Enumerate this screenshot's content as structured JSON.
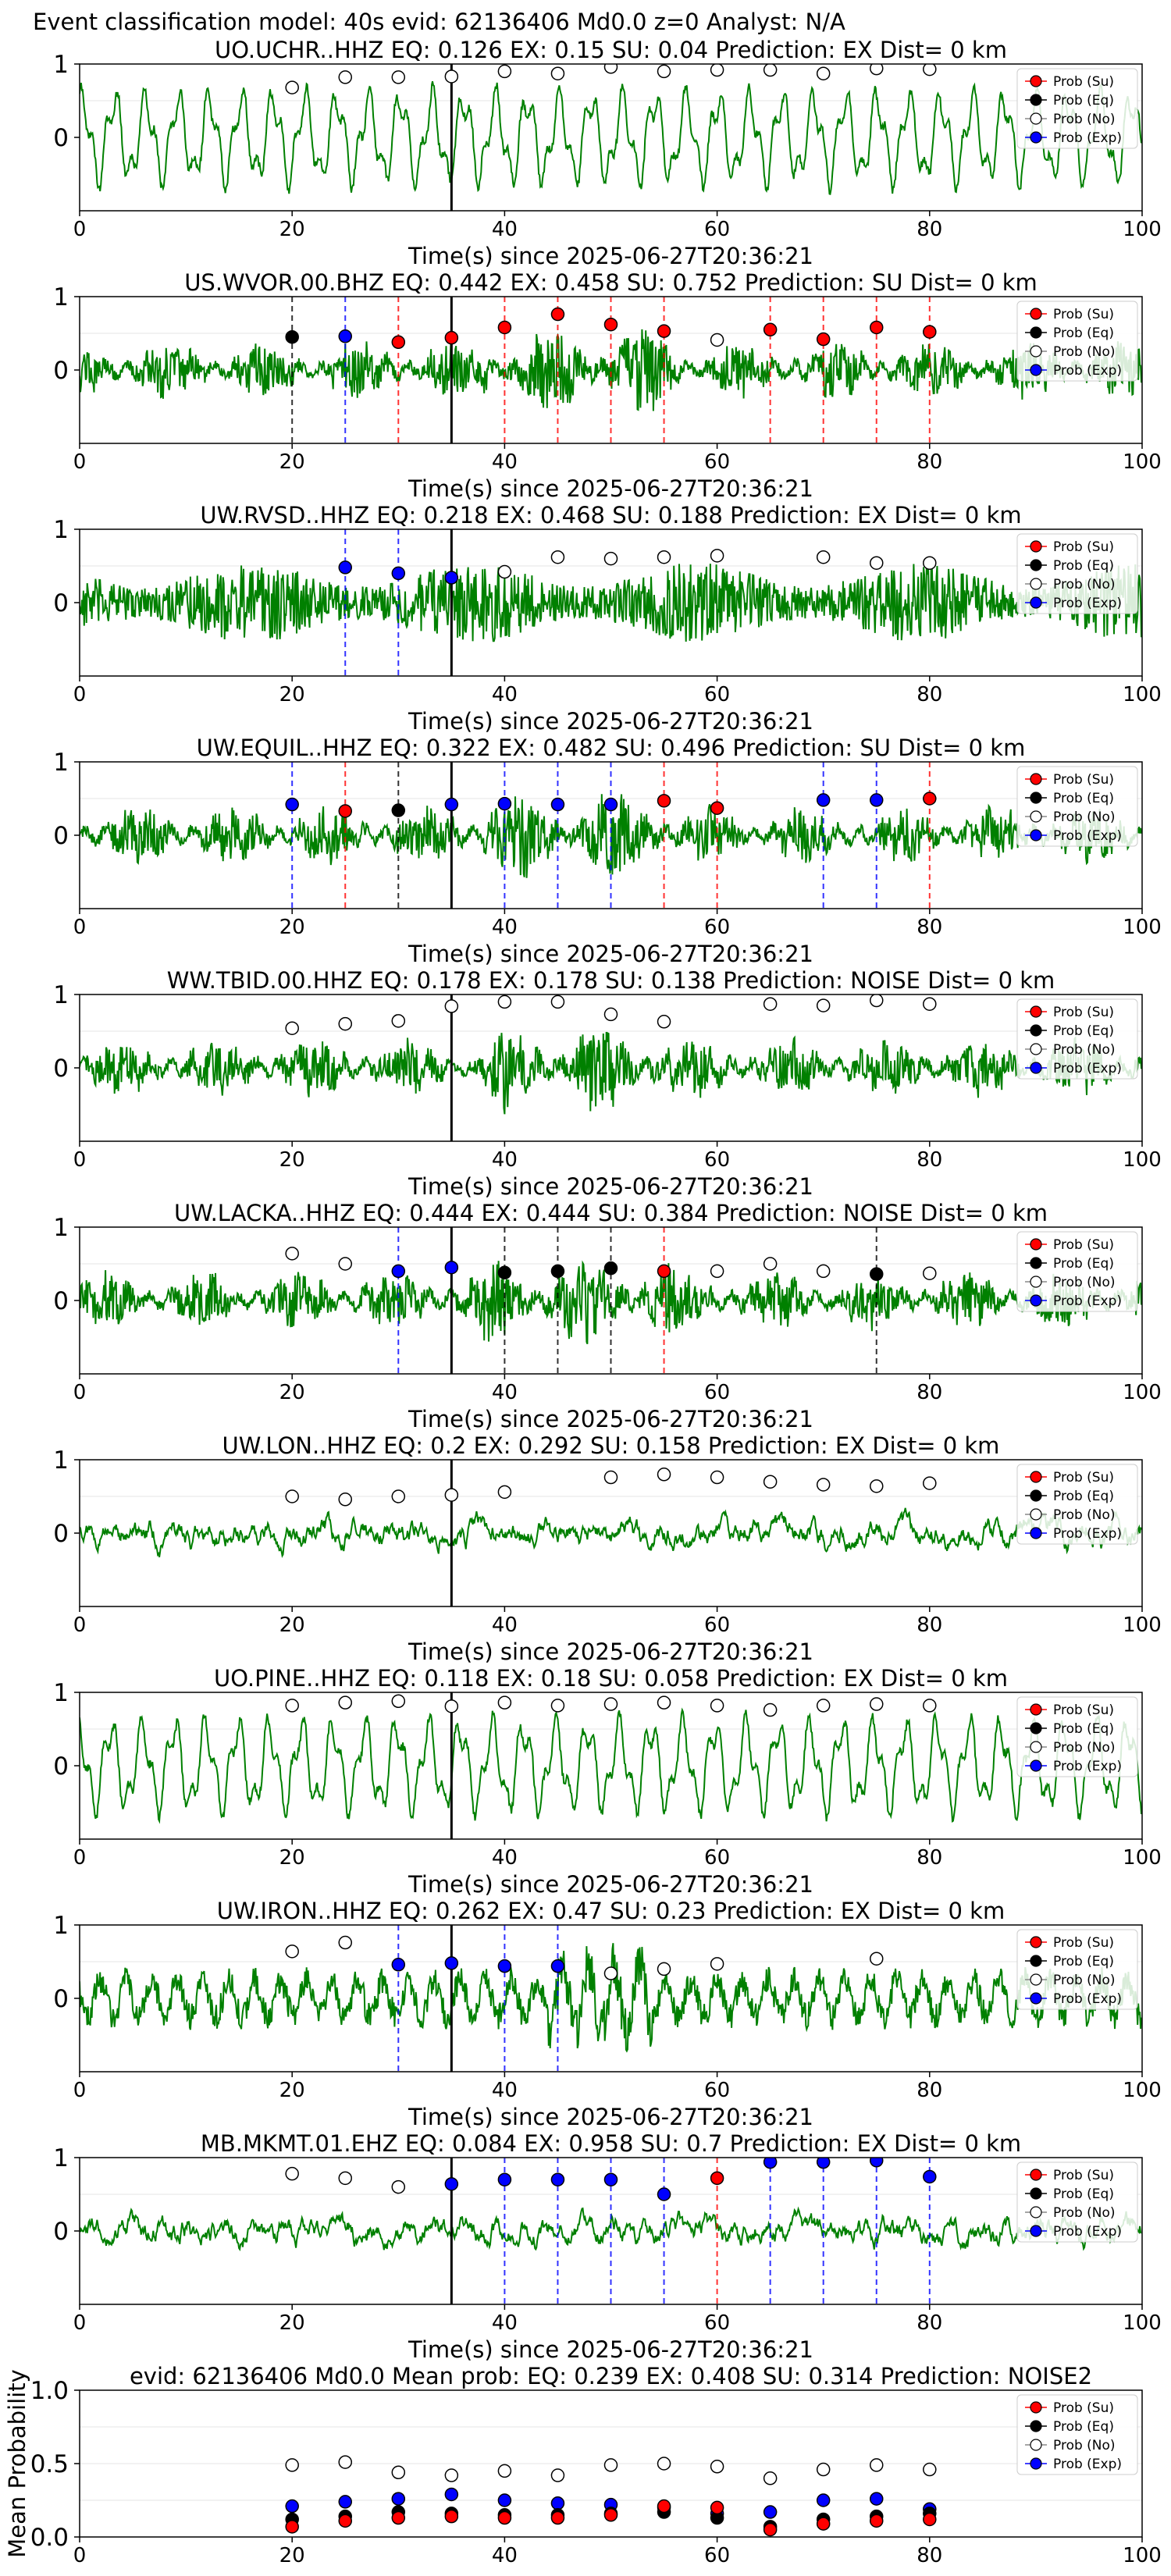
{
  "figure_title": "Event classification model: 40s evid: 62136406 Md0.0 z=0 Analyst: N/A",
  "legend_labels": [
    "Prob (Su)",
    "Prob (Eq)",
    "Prob (No)",
    "Prob (Exp)"
  ],
  "colors": {
    "su": "#ff0000",
    "eq": "#000000",
    "no": "#ffffff",
    "exp": "#0000ff",
    "trace": "#008000"
  },
  "chart_data": [
    {
      "type": "scatter",
      "title": "UO.UCHR..HHZ   EQ: 0.126  EX: 0.15  SU: 0.04   Prediction: EX    Dist= 0 km",
      "xlabel": "Time(s) since 2025-06-27T20:36:21",
      "xlim": [
        0,
        100
      ],
      "ylim": [
        -1,
        1
      ],
      "xticks": [
        "0",
        "20",
        "40",
        "60",
        "80",
        "100"
      ],
      "yticks": [
        "1",
        "0"
      ],
      "waveform": "smooth",
      "origin_line_x": 35,
      "markers": [
        {
          "x": 20,
          "y": 0.68,
          "cls": "no"
        },
        {
          "x": 25,
          "y": 0.82,
          "cls": "no"
        },
        {
          "x": 30,
          "y": 0.82,
          "cls": "no"
        },
        {
          "x": 35,
          "y": 0.83,
          "cls": "no"
        },
        {
          "x": 40,
          "y": 0.9,
          "cls": "no"
        },
        {
          "x": 45,
          "y": 0.87,
          "cls": "no"
        },
        {
          "x": 50,
          "y": 0.96,
          "cls": "no"
        },
        {
          "x": 55,
          "y": 0.9,
          "cls": "no"
        },
        {
          "x": 60,
          "y": 0.92,
          "cls": "no"
        },
        {
          "x": 65,
          "y": 0.92,
          "cls": "no"
        },
        {
          "x": 70,
          "y": 0.87,
          "cls": "no"
        },
        {
          "x": 75,
          "y": 0.94,
          "cls": "no"
        },
        {
          "x": 80,
          "y": 0.93,
          "cls": "no"
        }
      ]
    },
    {
      "type": "scatter",
      "title": "US.WVOR.00.BHZ   EQ: 0.442  EX: 0.458  SU: 0.752   Prediction: SU    Dist= 0 km",
      "xlabel": "Time(s) since 2025-06-27T20:36:21",
      "xlim": [
        0,
        100
      ],
      "ylim": [
        -1,
        1
      ],
      "xticks": [
        "0",
        "20",
        "40",
        "60",
        "80",
        "100"
      ],
      "yticks": [
        "1",
        "0"
      ],
      "waveform": "noisy",
      "origin_line_x": 35,
      "markers": [
        {
          "x": 20,
          "y": 0.45,
          "cls": "eq"
        },
        {
          "x": 25,
          "y": 0.46,
          "cls": "exp"
        },
        {
          "x": 30,
          "y": 0.38,
          "cls": "su"
        },
        {
          "x": 35,
          "y": 0.44,
          "cls": "su"
        },
        {
          "x": 40,
          "y": 0.58,
          "cls": "su"
        },
        {
          "x": 45,
          "y": 0.76,
          "cls": "su"
        },
        {
          "x": 50,
          "y": 0.62,
          "cls": "su"
        },
        {
          "x": 55,
          "y": 0.53,
          "cls": "su"
        },
        {
          "x": 60,
          "y": 0.41,
          "cls": "no"
        },
        {
          "x": 65,
          "y": 0.55,
          "cls": "su"
        },
        {
          "x": 70,
          "y": 0.42,
          "cls": "su"
        },
        {
          "x": 75,
          "y": 0.58,
          "cls": "su"
        },
        {
          "x": 80,
          "y": 0.52,
          "cls": "su"
        }
      ]
    },
    {
      "type": "scatter",
      "title": "UW.RVSD..HHZ   EQ: 0.218  EX: 0.468  SU: 0.188   Prediction: EX    Dist= 0 km",
      "xlabel": "Time(s) since 2025-06-27T20:36:21",
      "xlim": [
        0,
        100
      ],
      "ylim": [
        -1,
        1
      ],
      "xticks": [
        "0",
        "20",
        "40",
        "60",
        "80",
        "100"
      ],
      "yticks": [
        "1",
        "0"
      ],
      "waveform": "dense",
      "origin_line_x": 35,
      "markers": [
        {
          "x": 25,
          "y": 0.48,
          "cls": "exp"
        },
        {
          "x": 30,
          "y": 0.4,
          "cls": "exp"
        },
        {
          "x": 35,
          "y": 0.34,
          "cls": "exp"
        },
        {
          "x": 40,
          "y": 0.42,
          "cls": "no"
        },
        {
          "x": 45,
          "y": 0.62,
          "cls": "no"
        },
        {
          "x": 50,
          "y": 0.6,
          "cls": "no"
        },
        {
          "x": 55,
          "y": 0.62,
          "cls": "no"
        },
        {
          "x": 60,
          "y": 0.64,
          "cls": "no"
        },
        {
          "x": 70,
          "y": 0.62,
          "cls": "no"
        },
        {
          "x": 75,
          "y": 0.54,
          "cls": "no"
        },
        {
          "x": 80,
          "y": 0.54,
          "cls": "no"
        }
      ]
    },
    {
      "type": "scatter",
      "title": "UW.EQUIL..HHZ   EQ: 0.322  EX: 0.482  SU: 0.496   Prediction: SU    Dist= 0 km",
      "xlabel": "Time(s) since 2025-06-27T20:36:21",
      "xlim": [
        0,
        100
      ],
      "ylim": [
        -1,
        1
      ],
      "xticks": [
        "0",
        "20",
        "40",
        "60",
        "80",
        "100"
      ],
      "yticks": [
        "1",
        "0"
      ],
      "waveform": "noisy",
      "origin_line_x": 35,
      "markers": [
        {
          "x": 20,
          "y": 0.42,
          "cls": "exp"
        },
        {
          "x": 25,
          "y": 0.33,
          "cls": "su"
        },
        {
          "x": 30,
          "y": 0.34,
          "cls": "eq"
        },
        {
          "x": 35,
          "y": 0.42,
          "cls": "exp"
        },
        {
          "x": 40,
          "y": 0.43,
          "cls": "exp"
        },
        {
          "x": 45,
          "y": 0.42,
          "cls": "exp"
        },
        {
          "x": 50,
          "y": 0.42,
          "cls": "exp"
        },
        {
          "x": 55,
          "y": 0.47,
          "cls": "su"
        },
        {
          "x": 60,
          "y": 0.37,
          "cls": "su"
        },
        {
          "x": 70,
          "y": 0.48,
          "cls": "exp"
        },
        {
          "x": 75,
          "y": 0.48,
          "cls": "exp"
        },
        {
          "x": 80,
          "y": 0.5,
          "cls": "su"
        }
      ]
    },
    {
      "type": "scatter",
      "title": "WW.TBID.00.HHZ   EQ: 0.178  EX: 0.178  SU: 0.138   Prediction: NOISE    Dist= 0 km",
      "xlabel": "Time(s) since 2025-06-27T20:36:21",
      "xlim": [
        0,
        100
      ],
      "ylim": [
        -1,
        1
      ],
      "xticks": [
        "0",
        "20",
        "40",
        "60",
        "80",
        "100"
      ],
      "yticks": [
        "1",
        "0"
      ],
      "waveform": "noisy",
      "origin_line_x": 35,
      "markers": [
        {
          "x": 20,
          "y": 0.54,
          "cls": "no"
        },
        {
          "x": 25,
          "y": 0.6,
          "cls": "no"
        },
        {
          "x": 30,
          "y": 0.64,
          "cls": "no"
        },
        {
          "x": 35,
          "y": 0.84,
          "cls": "no"
        },
        {
          "x": 40,
          "y": 0.9,
          "cls": "no"
        },
        {
          "x": 45,
          "y": 0.9,
          "cls": "no"
        },
        {
          "x": 50,
          "y": 0.73,
          "cls": "no"
        },
        {
          "x": 55,
          "y": 0.63,
          "cls": "no"
        },
        {
          "x": 65,
          "y": 0.87,
          "cls": "no"
        },
        {
          "x": 70,
          "y": 0.85,
          "cls": "no"
        },
        {
          "x": 75,
          "y": 0.92,
          "cls": "no"
        },
        {
          "x": 80,
          "y": 0.87,
          "cls": "no"
        }
      ]
    },
    {
      "type": "scatter",
      "title": "UW.LACKA..HHZ   EQ: 0.444  EX: 0.444  SU: 0.384   Prediction: NOISE    Dist= 0 km",
      "xlabel": "Time(s) since 2025-06-27T20:36:21",
      "xlim": [
        0,
        100
      ],
      "ylim": [
        -1,
        1
      ],
      "xticks": [
        "0",
        "20",
        "40",
        "60",
        "80",
        "100"
      ],
      "yticks": [
        "1",
        "0"
      ],
      "waveform": "noisy",
      "origin_line_x": 35,
      "markers": [
        {
          "x": 20,
          "y": 0.64,
          "cls": "no"
        },
        {
          "x": 25,
          "y": 0.5,
          "cls": "no"
        },
        {
          "x": 30,
          "y": 0.4,
          "cls": "exp"
        },
        {
          "x": 35,
          "y": 0.45,
          "cls": "exp"
        },
        {
          "x": 40,
          "y": 0.38,
          "cls": "eq"
        },
        {
          "x": 45,
          "y": 0.4,
          "cls": "eq"
        },
        {
          "x": 50,
          "y": 0.44,
          "cls": "eq"
        },
        {
          "x": 55,
          "y": 0.4,
          "cls": "su"
        },
        {
          "x": 60,
          "y": 0.4,
          "cls": "no"
        },
        {
          "x": 65,
          "y": 0.5,
          "cls": "no"
        },
        {
          "x": 70,
          "y": 0.4,
          "cls": "no"
        },
        {
          "x": 75,
          "y": 0.36,
          "cls": "eq"
        },
        {
          "x": 80,
          "y": 0.37,
          "cls": "no"
        }
      ]
    },
    {
      "type": "scatter",
      "title": "UW.LON..HHZ   EQ: 0.2  EX: 0.292  SU: 0.158   Prediction: EX    Dist= 0 km",
      "xlabel": "Time(s) since 2025-06-27T20:36:21",
      "xlim": [
        0,
        100
      ],
      "ylim": [
        -1,
        1
      ],
      "xticks": [
        "0",
        "20",
        "40",
        "60",
        "80",
        "100"
      ],
      "yticks": [
        "1",
        "0"
      ],
      "waveform": "quiet",
      "origin_line_x": 35,
      "markers": [
        {
          "x": 20,
          "y": 0.5,
          "cls": "no"
        },
        {
          "x": 25,
          "y": 0.46,
          "cls": "no"
        },
        {
          "x": 30,
          "y": 0.5,
          "cls": "no"
        },
        {
          "x": 35,
          "y": 0.52,
          "cls": "no"
        },
        {
          "x": 40,
          "y": 0.56,
          "cls": "no"
        },
        {
          "x": 50,
          "y": 0.76,
          "cls": "no"
        },
        {
          "x": 55,
          "y": 0.8,
          "cls": "no"
        },
        {
          "x": 60,
          "y": 0.76,
          "cls": "no"
        },
        {
          "x": 65,
          "y": 0.7,
          "cls": "no"
        },
        {
          "x": 70,
          "y": 0.66,
          "cls": "no"
        },
        {
          "x": 75,
          "y": 0.64,
          "cls": "no"
        },
        {
          "x": 80,
          "y": 0.68,
          "cls": "no"
        }
      ]
    },
    {
      "type": "scatter",
      "title": "UO.PINE..HHZ   EQ: 0.118  EX: 0.18  SU: 0.058   Prediction: EX    Dist= 0 km",
      "xlabel": "Time(s) since 2025-06-27T20:36:21",
      "xlim": [
        0,
        100
      ],
      "ylim": [
        -1,
        1
      ],
      "xticks": [
        "0",
        "20",
        "40",
        "60",
        "80",
        "100"
      ],
      "yticks": [
        "1",
        "0"
      ],
      "waveform": "smooth",
      "origin_line_x": 35,
      "markers": [
        {
          "x": 20,
          "y": 0.82,
          "cls": "no"
        },
        {
          "x": 25,
          "y": 0.86,
          "cls": "no"
        },
        {
          "x": 30,
          "y": 0.88,
          "cls": "no"
        },
        {
          "x": 35,
          "y": 0.81,
          "cls": "no"
        },
        {
          "x": 40,
          "y": 0.86,
          "cls": "no"
        },
        {
          "x": 45,
          "y": 0.82,
          "cls": "no"
        },
        {
          "x": 50,
          "y": 0.84,
          "cls": "no"
        },
        {
          "x": 55,
          "y": 0.86,
          "cls": "no"
        },
        {
          "x": 60,
          "y": 0.82,
          "cls": "no"
        },
        {
          "x": 65,
          "y": 0.76,
          "cls": "no"
        },
        {
          "x": 70,
          "y": 0.82,
          "cls": "no"
        },
        {
          "x": 75,
          "y": 0.84,
          "cls": "no"
        },
        {
          "x": 80,
          "y": 0.82,
          "cls": "no"
        }
      ]
    },
    {
      "type": "scatter",
      "title": "UW.IRON..HHZ   EQ: 0.262  EX: 0.47  SU: 0.23   Prediction: EX    Dist= 0 km",
      "xlabel": "Time(s) since 2025-06-27T20:36:21",
      "xlim": [
        0,
        100
      ],
      "ylim": [
        -1,
        1
      ],
      "xticks": [
        "0",
        "20",
        "40",
        "60",
        "80",
        "100"
      ],
      "yticks": [
        "1",
        "0"
      ],
      "waveform": "medium",
      "origin_line_x": 35,
      "markers": [
        {
          "x": 20,
          "y": 0.64,
          "cls": "no"
        },
        {
          "x": 25,
          "y": 0.76,
          "cls": "no"
        },
        {
          "x": 30,
          "y": 0.46,
          "cls": "exp"
        },
        {
          "x": 35,
          "y": 0.48,
          "cls": "exp"
        },
        {
          "x": 40,
          "y": 0.44,
          "cls": "exp"
        },
        {
          "x": 45,
          "y": 0.44,
          "cls": "exp"
        },
        {
          "x": 50,
          "y": 0.34,
          "cls": "no"
        },
        {
          "x": 55,
          "y": 0.4,
          "cls": "no"
        },
        {
          "x": 60,
          "y": 0.47,
          "cls": "no"
        },
        {
          "x": 75,
          "y": 0.54,
          "cls": "no"
        }
      ]
    },
    {
      "type": "scatter",
      "title": "MB.MKMT.01.EHZ   EQ: 0.084  EX: 0.958  SU: 0.7   Prediction: EX    Dist= 0 km",
      "xlabel": "Time(s) since 2025-06-27T20:36:21",
      "xlim": [
        0,
        100
      ],
      "ylim": [
        -1,
        1
      ],
      "xticks": [
        "0",
        "20",
        "40",
        "60",
        "80",
        "100"
      ],
      "yticks": [
        "1",
        "0"
      ],
      "waveform": "quiet",
      "origin_line_x": 35,
      "markers": [
        {
          "x": 20,
          "y": 0.78,
          "cls": "no"
        },
        {
          "x": 25,
          "y": 0.72,
          "cls": "no"
        },
        {
          "x": 30,
          "y": 0.6,
          "cls": "no"
        },
        {
          "x": 35,
          "y": 0.64,
          "cls": "exp"
        },
        {
          "x": 40,
          "y": 0.7,
          "cls": "exp"
        },
        {
          "x": 45,
          "y": 0.7,
          "cls": "exp"
        },
        {
          "x": 50,
          "y": 0.7,
          "cls": "exp"
        },
        {
          "x": 55,
          "y": 0.5,
          "cls": "exp"
        },
        {
          "x": 60,
          "y": 0.72,
          "cls": "su"
        },
        {
          "x": 65,
          "y": 0.94,
          "cls": "exp"
        },
        {
          "x": 70,
          "y": 0.94,
          "cls": "exp"
        },
        {
          "x": 75,
          "y": 0.96,
          "cls": "exp"
        },
        {
          "x": 80,
          "y": 0.74,
          "cls": "exp"
        }
      ]
    },
    {
      "type": "scatter",
      "title": "evid: 62136406  Md0.0   Mean prob:   EQ: 0.239  EX: 0.408  SU: 0.314   Prediction: NOISE2",
      "ylabel": "Mean Probability",
      "xlim": [
        0,
        100
      ],
      "ylim": [
        0,
        1
      ],
      "xticks": [
        "0",
        "20",
        "40",
        "60",
        "80",
        "100"
      ],
      "yticks": [
        "1.0",
        "0.5",
        "0.0"
      ],
      "series": [
        {
          "cls": "no",
          "x": [
            20,
            25,
            30,
            35,
            40,
            45,
            50,
            55,
            60,
            65,
            70,
            75,
            80
          ],
          "y": [
            0.49,
            0.51,
            0.44,
            0.42,
            0.45,
            0.42,
            0.49,
            0.5,
            0.48,
            0.4,
            0.46,
            0.49,
            0.46
          ]
        },
        {
          "cls": "exp",
          "x": [
            20,
            25,
            30,
            35,
            40,
            45,
            50,
            55,
            60,
            65,
            70,
            75,
            80
          ],
          "y": [
            0.21,
            0.24,
            0.26,
            0.29,
            0.25,
            0.23,
            0.22,
            0.2,
            0.16,
            0.17,
            0.25,
            0.26,
            0.19
          ]
        },
        {
          "cls": "eq",
          "x": [
            20,
            25,
            30,
            35,
            40,
            45,
            50,
            55,
            60,
            65,
            70,
            75,
            80
          ],
          "y": [
            0.12,
            0.14,
            0.17,
            0.16,
            0.15,
            0.15,
            0.16,
            0.17,
            0.13,
            0.07,
            0.12,
            0.14,
            0.16
          ]
        },
        {
          "cls": "su",
          "x": [
            20,
            25,
            30,
            35,
            40,
            45,
            50,
            55,
            60,
            65,
            70,
            75,
            80
          ],
          "y": [
            0.07,
            0.11,
            0.13,
            0.14,
            0.13,
            0.13,
            0.15,
            0.21,
            0.2,
            0.05,
            0.09,
            0.11,
            0.12
          ]
        }
      ]
    }
  ]
}
